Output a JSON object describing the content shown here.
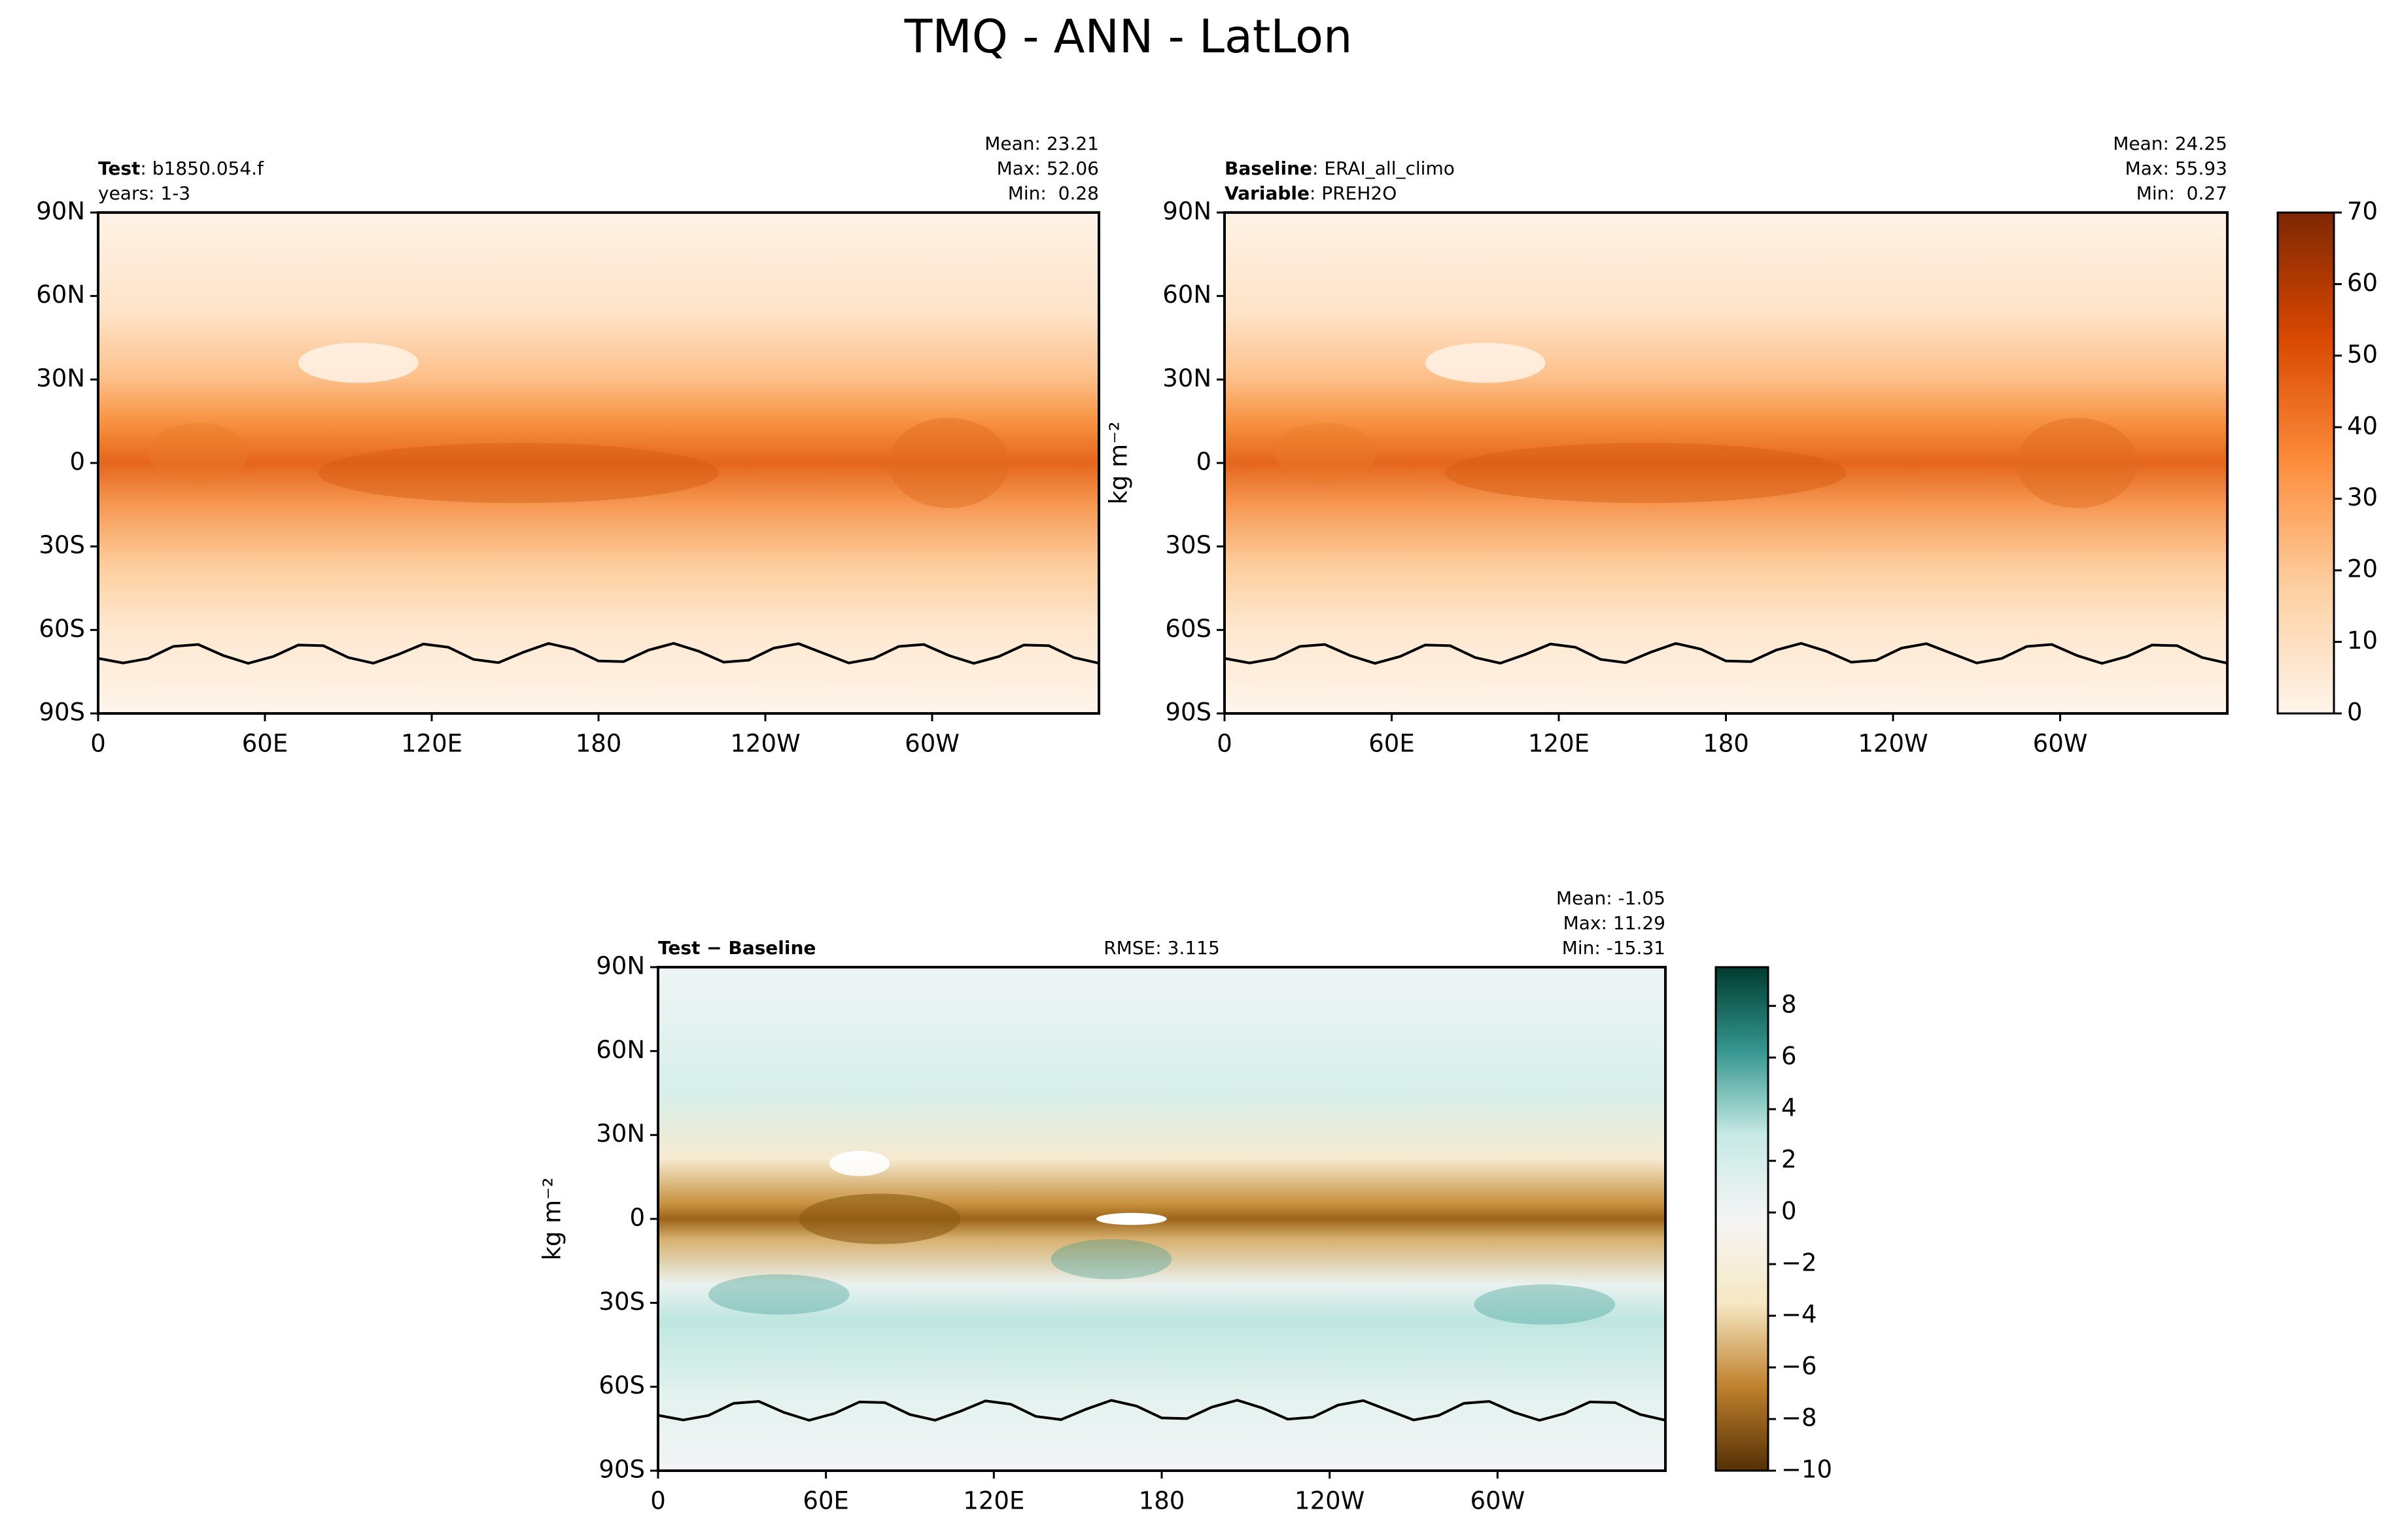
{
  "title": "TMQ - ANN - LatLon",
  "chart_data": [
    {
      "type": "map",
      "left_text": [
        {
          "bold": "Test",
          "text": ": b1850.054.f"
        },
        {
          "text": "years: 1-3"
        }
      ],
      "right_text": [
        "Mean: 23.21",
        "Max: 52.06",
        "Min:  0.28"
      ],
      "xlim": [
        0,
        360
      ],
      "xticks": [
        0,
        {
          "value": 60,
          "label": "60E"
        },
        {
          "value": 120,
          "label": "120E"
        },
        180,
        {
          "value": 240,
          "label": "120W"
        },
        {
          "value": 300,
          "label": "60W"
        }
      ],
      "ylim": [
        -90,
        90
      ],
      "yticks": [
        {
          "value": -90,
          "label": "90S"
        },
        {
          "value": -60,
          "label": "60S"
        },
        {
          "value": -30,
          "label": "30S"
        },
        0,
        {
          "value": 30,
          "label": "30N"
        },
        {
          "value": 60,
          "label": "60N"
        },
        {
          "value": 90,
          "label": "90N"
        }
      ],
      "field": "orange"
    },
    {
      "type": "map",
      "left_text": [
        {
          "bold": "Baseline",
          "text": ": ERAI_all_climo"
        },
        {
          "bold": "Variable",
          "text": ": PREH2O"
        }
      ],
      "right_text": [
        "Mean: 24.25",
        "Max: 55.93",
        "Min:  0.27"
      ],
      "ylabel": "kg m⁻²",
      "xlim": [
        0,
        360
      ],
      "xticks": [
        0,
        {
          "value": 60,
          "label": "60E"
        },
        {
          "value": 120,
          "label": "120E"
        },
        180,
        {
          "value": 240,
          "label": "120W"
        },
        {
          "value": 300,
          "label": "60W"
        }
      ],
      "ylim": [
        -90,
        90
      ],
      "yticks": [
        {
          "value": -90,
          "label": "90S"
        },
        {
          "value": -60,
          "label": "60S"
        },
        {
          "value": -30,
          "label": "30S"
        },
        0,
        {
          "value": 30,
          "label": "30N"
        },
        {
          "value": 60,
          "label": "60N"
        },
        {
          "value": 90,
          "label": "90N"
        }
      ],
      "field": "orange",
      "colorbar": {
        "lim": [
          0,
          70
        ],
        "ticks": [
          0,
          10,
          20,
          30,
          40,
          50,
          60,
          70
        ],
        "colors": [
          "#fff5eb",
          "#fdd0a2",
          "#fd8d3c",
          "#d94801",
          "#7f2704"
        ]
      }
    },
    {
      "type": "map",
      "left_text": [
        {
          "bold": "Test − Baseline"
        }
      ],
      "center_text": "RMSE: 3.115",
      "right_text": [
        "Mean: -1.05",
        "Max: 11.29",
        "Min: -15.31"
      ],
      "ylabel": "kg m⁻²",
      "xlim": [
        0,
        360
      ],
      "xticks": [
        0,
        {
          "value": 60,
          "label": "60E"
        },
        {
          "value": 120,
          "label": "120E"
        },
        180,
        {
          "value": 240,
          "label": "120W"
        },
        {
          "value": 300,
          "label": "60W"
        }
      ],
      "ylim": [
        -90,
        90
      ],
      "yticks": [
        {
          "value": -90,
          "label": "90S"
        },
        {
          "value": -60,
          "label": "60S"
        },
        {
          "value": -30,
          "label": "30S"
        },
        0,
        {
          "value": 30,
          "label": "30N"
        },
        {
          "value": 60,
          "label": "60N"
        },
        {
          "value": 90,
          "label": "90N"
        }
      ],
      "field": "diff",
      "colorbar": {
        "lim": [
          -10,
          9.5
        ],
        "ticks": [
          {
            "value": -10,
            "label": "−10"
          },
          {
            "value": -8,
            "label": "−8"
          },
          {
            "value": -6,
            "label": "−6"
          },
          {
            "value": -4,
            "label": "−4"
          },
          {
            "value": -2,
            "label": "−2"
          },
          0,
          2,
          4,
          6,
          8
        ],
        "colors": [
          "#543005",
          "#bf812d",
          "#f6e8c3",
          "#f5f5f5",
          "#c7eae5",
          "#35978f",
          "#003c30"
        ]
      }
    }
  ]
}
